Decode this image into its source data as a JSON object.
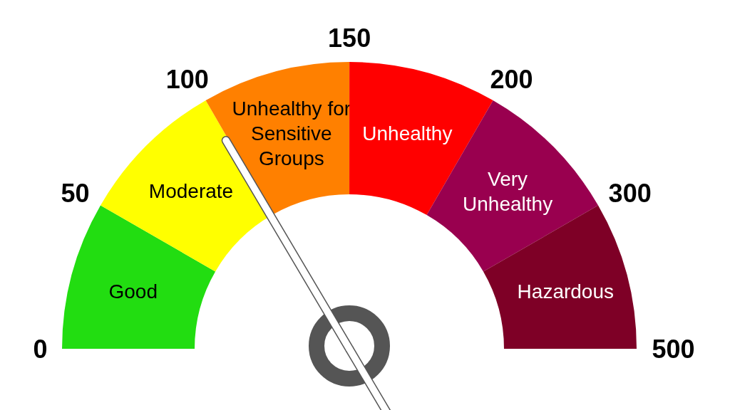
{
  "chart_data": {
    "type": "donut",
    "categories": [
      "Good",
      "Moderate",
      "Unhealthy for Sensitive Groups",
      "Unhealthy",
      "Very Unhealthy",
      "Hazardous"
    ],
    "values": [
      16.67,
      16.67,
      16.67,
      16.67,
      16.66,
      16.66
    ],
    "colors": [
      "#22dd11",
      "#ffff00",
      "#ff8000",
      "#ff0000",
      "#99004f",
      "#7e0026"
    ],
    "needle": "Moderate",
    "annotations": [
      "0",
      "50",
      "100",
      "150",
      "200",
      "300",
      "500"
    ]
  }
}
